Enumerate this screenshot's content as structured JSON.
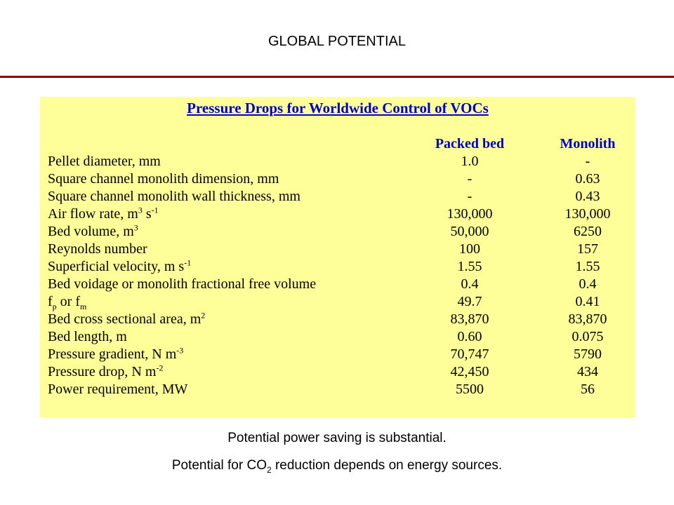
{
  "slide": {
    "title": "GLOBAL POTENTIAL",
    "rule_color": "#8b0000"
  },
  "table": {
    "title": "Pressure Drops for Worldwide Control of VOCs",
    "background": "#ffff99",
    "header_color": "#0000cc",
    "columns": [
      "Packed bed",
      "Monolith"
    ],
    "rows": [
      {
        "label": "Pellet diameter, mm",
        "packed_bed": "1.0",
        "monolith": "-"
      },
      {
        "label": "Square channel monolith dimension, mm",
        "packed_bed": "-",
        "monolith": "0.63"
      },
      {
        "label": "Square channel monolith wall thickness, mm",
        "packed_bed": "-",
        "monolith": "0.43"
      },
      {
        "label_pre": "Air flow rate, m",
        "label_sup1": "3",
        "label_mid": " s",
        "label_sup2": "-1",
        "packed_bed": "130,000",
        "monolith": "130,000"
      },
      {
        "label_pre": "Bed volume, m",
        "label_sup1": "3",
        "packed_bed": "50,000",
        "monolith": "6250"
      },
      {
        "label": "Reynolds number",
        "packed_bed": "100",
        "monolith": "157"
      },
      {
        "label_pre": "Superficial velocity, m s",
        "label_sup1": "-1",
        "packed_bed": "1.55",
        "monolith": "1.55"
      },
      {
        "label": "Bed voidage or monolith fractional free volume",
        "packed_bed": "0.4",
        "monolith": "0.4"
      },
      {
        "label_f1": "f",
        "label_sub1": "p",
        "label_or": " or f",
        "label_sub2": "m",
        "packed_bed": "49.7",
        "monolith": "0.41"
      },
      {
        "label_pre": "Bed cross sectional area, m",
        "label_sup1": "2",
        "packed_bed": "83,870",
        "monolith": "83,870"
      },
      {
        "label": "Bed length, m",
        "packed_bed": "0.60",
        "monolith": "0.075"
      },
      {
        "label_pre": "Pressure gradient, N m",
        "label_sup1": "-3",
        "packed_bed": "70,747",
        "monolith": "5790"
      },
      {
        "label_pre": "Pressure drop, N m",
        "label_sup1": "-2",
        "packed_bed": "42,450",
        "monolith": "434"
      },
      {
        "label": "Power requirement, MW",
        "packed_bed": "5500",
        "monolith": "56"
      }
    ]
  },
  "captions": {
    "line1": "Potential power saving is substantial.",
    "line2_pre": "Potential for CO",
    "line2_sub": "2",
    "line2_post": " reduction depends on energy sources."
  }
}
